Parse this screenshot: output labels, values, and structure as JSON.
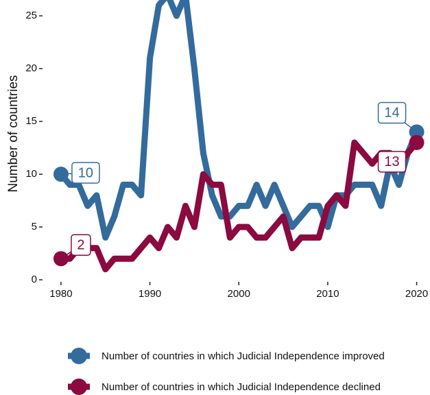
{
  "chart_data": {
    "type": "line",
    "y_label": "Number of countries",
    "x": [
      1980,
      1981,
      1982,
      1983,
      1984,
      1985,
      1986,
      1987,
      1988,
      1989,
      1990,
      1991,
      1992,
      1993,
      1994,
      1995,
      1996,
      1997,
      1998,
      1999,
      2000,
      2001,
      2002,
      2003,
      2004,
      2005,
      2006,
      2007,
      2008,
      2009,
      2010,
      2011,
      2012,
      2013,
      2014,
      2015,
      2016,
      2017,
      2018,
      2019,
      2020
    ],
    "series": [
      {
        "name": "Number of countries in which Judicial Independence improved",
        "color": "#336b9c",
        "values": [
          10,
          9,
          9,
          7,
          8,
          4,
          6,
          9,
          9,
          8,
          21,
          26,
          27,
          25,
          27,
          20,
          12,
          8,
          6,
          6,
          7,
          7,
          9,
          7,
          9,
          7,
          5,
          6,
          7,
          7,
          5,
          8,
          8,
          9,
          9,
          9,
          7,
          11,
          9,
          12,
          14
        ]
      },
      {
        "name": "Number of countries in which Judicial Independence declined",
        "color": "#8b0a40",
        "values": [
          2,
          2,
          3,
          3,
          3,
          1,
          2,
          2,
          2,
          3,
          4,
          3,
          5,
          4,
          7,
          5,
          10,
          9,
          9,
          4,
          5,
          5,
          4,
          4,
          5,
          6,
          3,
          4,
          4,
          4,
          7,
          8,
          7,
          13,
          12,
          11,
          12,
          12,
          11,
          12,
          13
        ]
      }
    ],
    "xlim": [
      1978,
      2021.5
    ],
    "xticks": [
      1980,
      1990,
      2000,
      2010,
      2020
    ],
    "ylim": [
      0,
      26.5
    ],
    "yticks": [
      0,
      5,
      10,
      15,
      20,
      25
    ],
    "grid": false,
    "legend": "bottom"
  }
}
